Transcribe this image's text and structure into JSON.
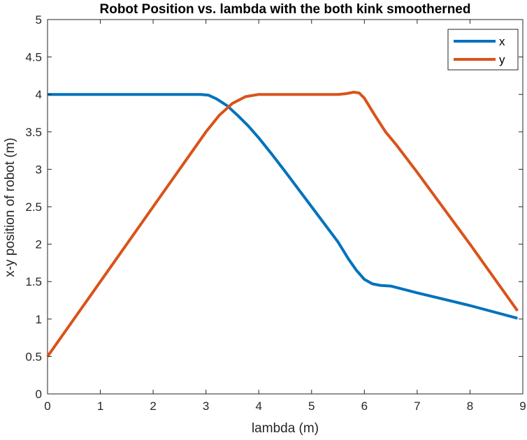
{
  "chart_data": {
    "type": "line",
    "title": "Robot Position vs. lambda with the both kink smootherned",
    "xlabel": "lambda (m)",
    "ylabel": "x-y position of robot (m)",
    "xlim": [
      0,
      9
    ],
    "ylim": [
      0,
      5
    ],
    "xticks": [
      "0",
      "1",
      "2",
      "3",
      "4",
      "5",
      "6",
      "7",
      "8",
      "9"
    ],
    "yticks": [
      "0",
      "0.5",
      "1",
      "1.5",
      "2",
      "2.5",
      "3",
      "3.5",
      "4",
      "4.5",
      "5"
    ],
    "grid": false,
    "legend_position": "top-right",
    "series": [
      {
        "name": "x",
        "color": "#0072BD",
        "points": [
          [
            0,
            4
          ],
          [
            1,
            4
          ],
          [
            2,
            4
          ],
          [
            2.9,
            4
          ],
          [
            3.05,
            3.99
          ],
          [
            3.2,
            3.94
          ],
          [
            3.4,
            3.85
          ],
          [
            3.6,
            3.72
          ],
          [
            3.8,
            3.58
          ],
          [
            4,
            3.42
          ],
          [
            4.25,
            3.2
          ],
          [
            4.5,
            2.97
          ],
          [
            5,
            2.5
          ],
          [
            5.5,
            2.03
          ],
          [
            5.7,
            1.8
          ],
          [
            5.85,
            1.65
          ],
          [
            6,
            1.53
          ],
          [
            6.15,
            1.47
          ],
          [
            6.3,
            1.45
          ],
          [
            6.5,
            1.44
          ],
          [
            7,
            1.35
          ],
          [
            8,
            1.18
          ],
          [
            8.9,
            1.01
          ]
        ]
      },
      {
        "name": "y",
        "color": "#D95319",
        "points": [
          [
            0,
            0.5
          ],
          [
            1,
            1.5
          ],
          [
            2,
            2.5
          ],
          [
            3,
            3.5
          ],
          [
            3.25,
            3.72
          ],
          [
            3.5,
            3.88
          ],
          [
            3.75,
            3.97
          ],
          [
            4,
            4
          ],
          [
            4.5,
            4
          ],
          [
            5,
            4
          ],
          [
            5.5,
            4
          ],
          [
            5.65,
            4.01
          ],
          [
            5.8,
            4.03
          ],
          [
            5.9,
            4.02
          ],
          [
            6,
            3.95
          ],
          [
            6.2,
            3.72
          ],
          [
            6.4,
            3.5
          ],
          [
            6.6,
            3.33
          ],
          [
            7,
            2.96
          ],
          [
            8,
            2
          ],
          [
            8.9,
            1.11
          ]
        ]
      }
    ]
  }
}
